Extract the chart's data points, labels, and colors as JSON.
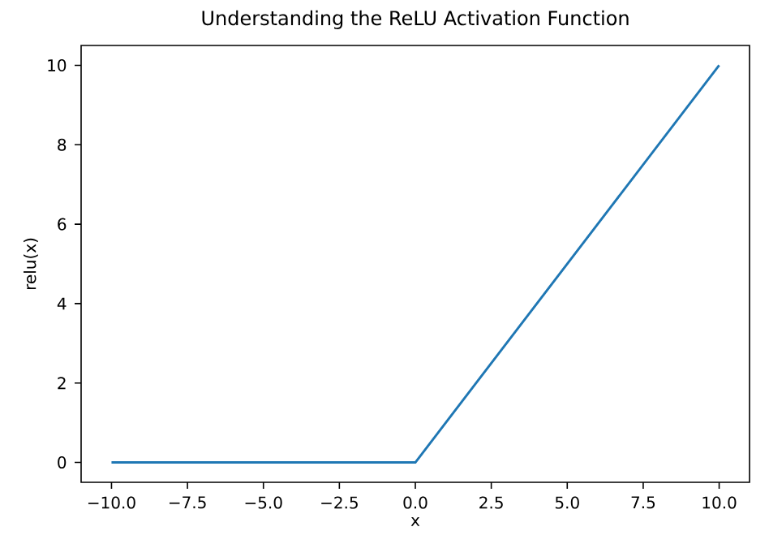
{
  "chart_data": {
    "type": "line",
    "title": "Understanding the ReLU Activation Function",
    "xlabel": "x",
    "ylabel": "relu(x)",
    "x": [
      -10,
      0,
      10
    ],
    "series": [
      {
        "color": "#1f77b4",
        "values": [
          0,
          0,
          10
        ]
      }
    ],
    "xlim": [
      -11,
      11
    ],
    "ylim": [
      -0.5,
      10.5
    ],
    "xticks": [
      {
        "value": -10,
        "label": "−10.0"
      },
      {
        "value": -7.5,
        "label": "−7.5"
      },
      {
        "value": -5,
        "label": "−5.0"
      },
      {
        "value": -2.5,
        "label": "−2.5"
      },
      {
        "value": 0,
        "label": "0.0"
      },
      {
        "value": 2.5,
        "label": "2.5"
      },
      {
        "value": 5,
        "label": "5.0"
      },
      {
        "value": 7.5,
        "label": "7.5"
      },
      {
        "value": 10,
        "label": "10.0"
      }
    ],
    "yticks": [
      0,
      2,
      4,
      6,
      8,
      10
    ],
    "grid": false,
    "marker": "none",
    "line_style": "solid"
  }
}
